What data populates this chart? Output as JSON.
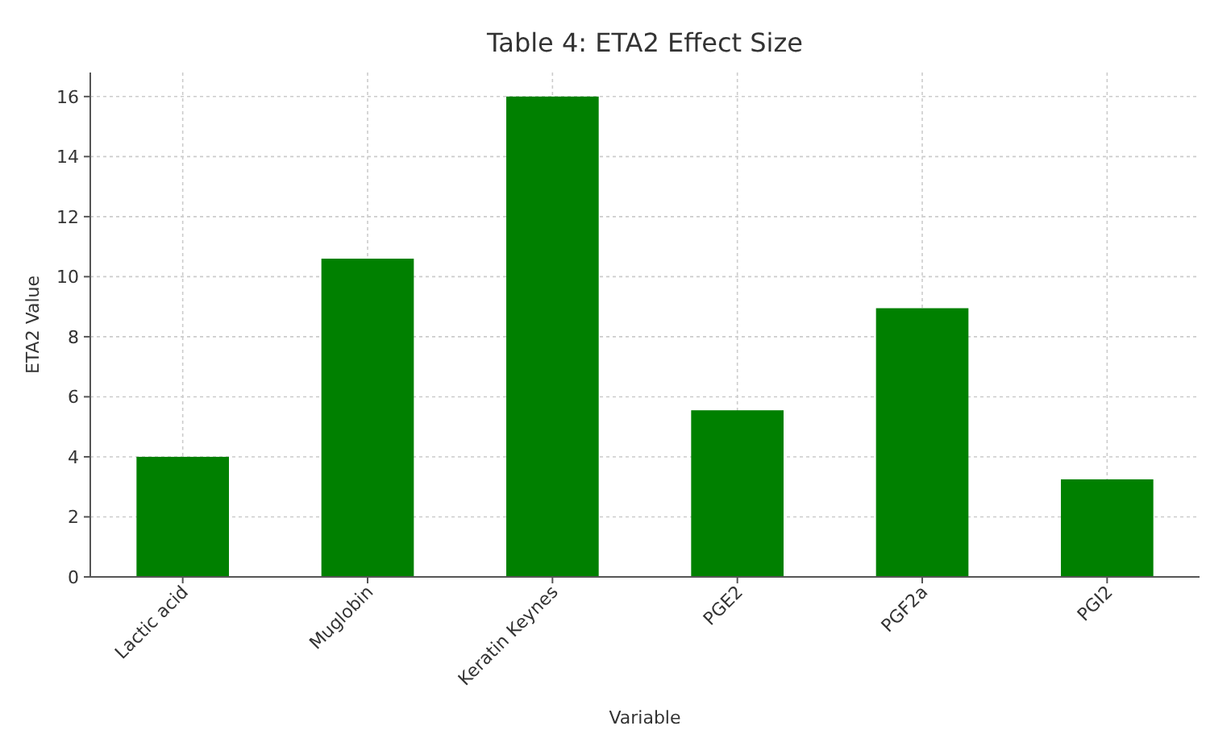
{
  "chart_data": {
    "type": "bar",
    "title": "Table 4: ETA2 Effect Size",
    "xlabel": "Variable",
    "ylabel": "ETA2 Value",
    "categories": [
      "Lactic acid",
      "Muglobin",
      "Keratin Keynes",
      "PGE2",
      "PGF2a",
      "PGI2"
    ],
    "values": [
      4.0,
      10.6,
      16.0,
      5.55,
      8.95,
      3.25
    ],
    "color": "#008000",
    "ylim": [
      0,
      16.8
    ],
    "yticks": [
      0,
      2,
      4,
      6,
      8,
      10,
      12,
      14,
      16
    ],
    "grid": true
  }
}
